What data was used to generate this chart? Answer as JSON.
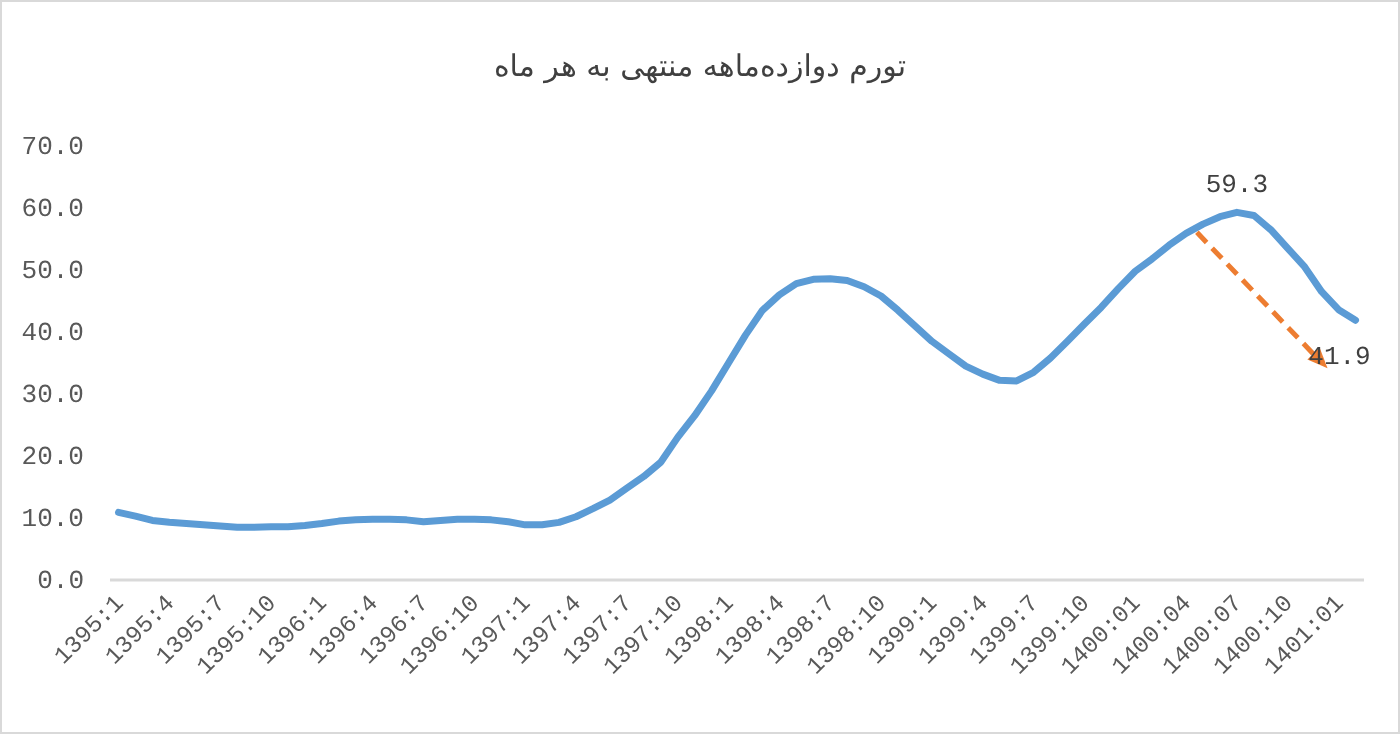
{
  "chart_data": {
    "type": "line",
    "title": "تورم دوازده‌ماهه منتهی به هر ماه",
    "categories": [
      "1395:1",
      null,
      null,
      "1395:4",
      null,
      null,
      "1395:7",
      null,
      null,
      "1395:10",
      null,
      null,
      "1396:1",
      null,
      null,
      "1396:4",
      null,
      null,
      "1396:7",
      null,
      null,
      "1396:10",
      null,
      null,
      "1397:1",
      null,
      null,
      "1397:4",
      null,
      null,
      "1397:7",
      null,
      null,
      "1397:10",
      null,
      null,
      "1398:1",
      null,
      null,
      "1398:4",
      null,
      null,
      "1398:7",
      null,
      null,
      "1398:10",
      null,
      null,
      "1399:1",
      null,
      null,
      "1399:4",
      null,
      null,
      "1399:7",
      null,
      null,
      "1399:10",
      null,
      null,
      "1400:01",
      null,
      null,
      "1400:04",
      null,
      null,
      "1400:07",
      null,
      null,
      "1400:10",
      null,
      null,
      "1401:01",
      null
    ],
    "ylim": [
      0,
      70
    ],
    "yticks": [
      {
        "value": 0,
        "label": "0.0"
      },
      {
        "value": 10,
        "label": "10.0"
      },
      {
        "value": 20,
        "label": "20.0"
      },
      {
        "value": 30,
        "label": "30.0"
      },
      {
        "value": 40,
        "label": "40.0"
      },
      {
        "value": 50,
        "label": "50.0"
      },
      {
        "value": 60,
        "label": "60.0"
      },
      {
        "value": 70,
        "label": "70.0"
      }
    ],
    "series": [
      {
        "color": "#5b9bd5",
        "values": [
          10.9,
          10.3,
          9.6,
          9.3,
          9.1,
          8.9,
          8.7,
          8.5,
          8.5,
          8.6,
          8.6,
          8.8,
          9.1,
          9.5,
          9.7,
          9.8,
          9.8,
          9.7,
          9.4,
          9.6,
          9.8,
          9.8,
          9.7,
          9.4,
          8.9,
          8.9,
          9.3,
          10.2,
          11.5,
          12.9,
          14.8,
          16.7,
          19.0,
          23.0,
          26.5,
          30.5,
          35.0,
          39.5,
          43.5,
          46.0,
          47.8,
          48.5,
          48.6,
          48.3,
          47.3,
          45.8,
          43.5,
          41.0,
          38.5,
          36.5,
          34.5,
          33.2,
          32.2,
          32.1,
          33.5,
          35.8,
          38.5,
          41.3,
          44.0,
          47.0,
          49.8,
          51.8,
          54.0,
          55.9,
          57.4,
          58.6,
          59.3,
          58.8,
          56.5,
          53.5,
          50.5,
          46.5,
          43.6,
          41.9
        ],
        "value_labels": [
          null,
          null,
          null,
          null,
          null,
          null,
          null,
          null,
          null,
          null,
          null,
          null,
          null,
          null,
          null,
          null,
          null,
          null,
          null,
          null,
          null,
          null,
          null,
          null,
          null,
          null,
          null,
          null,
          null,
          null,
          null,
          null,
          null,
          null,
          null,
          null,
          null,
          null,
          null,
          null,
          null,
          null,
          null,
          null,
          null,
          null,
          null,
          null,
          null,
          null,
          null,
          null,
          null,
          null,
          null,
          null,
          null,
          null,
          null,
          null,
          null,
          null,
          null,
          null,
          null,
          null,
          "59.3",
          null,
          null,
          null,
          null,
          null,
          null,
          "41.9"
        ]
      }
    ]
  }
}
